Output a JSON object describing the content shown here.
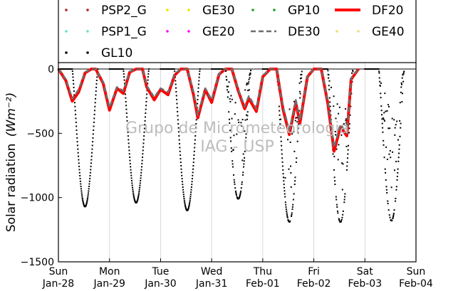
{
  "chart_data": {
    "type": "line",
    "title": "",
    "ylabel": "Solar radiation",
    "ylabel_unit": "(Wm⁻²)",
    "xlabel": "",
    "ylim": [
      -1500,
      50
    ],
    "xlim": [
      "2018-01-28 00:00",
      "2018-02-04 00:00"
    ],
    "grid": "vertical",
    "legend_position": "top",
    "watermark": [
      "Grupo de Micrometeorologia",
      "IAG - USP"
    ],
    "y_ticks": [
      "0",
      "−500",
      "−1000",
      "−1500"
    ],
    "x_ticks": [
      {
        "day": "Sun",
        "date": "Jan-28"
      },
      {
        "day": "Mon",
        "date": "Jan-29"
      },
      {
        "day": "Tue",
        "date": "Jan-30"
      },
      {
        "day": "Wed",
        "date": "Jan-31"
      },
      {
        "day": "Thu",
        "date": "Feb-01"
      },
      {
        "day": "Fri",
        "date": "Feb-02"
      },
      {
        "day": "Sat",
        "date": "Feb-03"
      },
      {
        "day": "Sun",
        "date": "Feb-04"
      }
    ],
    "series": [
      {
        "name": "PSP2_G",
        "color": "#b22222",
        "style": "dotted",
        "values": []
      },
      {
        "name": "GE30",
        "color": "#f5e000",
        "style": "dotted",
        "values": []
      },
      {
        "name": "GP10",
        "color": "#1aa31a",
        "style": "dotted",
        "values": []
      },
      {
        "name": "DF20",
        "color": "#ff0000",
        "style": "solid-thick",
        "values": [
          0,
          -90,
          -250,
          -180,
          -30,
          0,
          0,
          -110,
          -320,
          -150,
          -190,
          -25,
          0,
          0,
          -140,
          -240,
          -160,
          -200,
          -50,
          0,
          0,
          -200,
          -380,
          -160,
          -260,
          -40,
          0,
          0,
          -170,
          -310,
          -230,
          -330,
          -60,
          0,
          0,
          -310,
          -510,
          -260,
          -420,
          -60,
          0,
          0,
          -260,
          -640,
          -450,
          -520,
          -80,
          0
        ]
      },
      {
        "name": "PSP1_G",
        "color": "#66e0cc",
        "style": "dotted",
        "values": []
      },
      {
        "name": "GE20",
        "color": "#ff00ff",
        "style": "dotted",
        "values": []
      },
      {
        "name": "DE30",
        "color": "#6e6e6e",
        "style": "dashed",
        "values": [
          0,
          -80,
          -230,
          -160,
          -25,
          0,
          0,
          -100,
          -300,
          -140,
          -170,
          -20,
          0,
          0,
          -130,
          -220,
          -150,
          -180,
          -40,
          0,
          0,
          -180,
          -360,
          -150,
          -240,
          -35,
          0,
          0,
          -160,
          -290,
          -210,
          -310,
          -50,
          0,
          0,
          -290,
          -480,
          -240,
          -400,
          -55,
          0,
          0,
          -240,
          -610,
          -430,
          -500,
          -70,
          0
        ]
      },
      {
        "name": "GE40",
        "color": "#eedd77",
        "style": "dotted",
        "values": []
      },
      {
        "name": "GL10",
        "color": "#000000",
        "style": "dotted",
        "daily_peak_values": [
          -1070,
          -1040,
          -1100,
          -1010,
          -1190,
          -1190,
          -1180
        ],
        "day_start_hours": [
          6.5,
          6.5,
          6.5,
          6.5,
          6.5,
          6.5,
          6.5
        ],
        "day_end_hours": [
          18.5,
          18.5,
          18.5,
          18.5,
          18.5,
          18.5,
          18.5
        ]
      }
    ],
    "x_sample_hours": [
      0,
      3.5,
      6.5,
      9.5,
      12.5,
      15.5,
      17.5,
      21,
      24,
      27.5,
      30.5,
      33.5,
      36.5,
      39.5,
      41.5,
      45,
      48,
      51.5,
      54.5,
      57.5,
      60.5,
      63.5,
      65.5,
      69,
      72,
      75.5,
      78.5,
      81.5,
      84.5,
      87.5,
      89.5,
      93,
      96,
      99.5,
      102.5,
      105.5,
      108.5,
      111.5,
      113.5,
      117,
      120,
      123.5,
      126.5,
      129.5,
      132.5,
      135.5,
      137.5,
      141
    ]
  }
}
